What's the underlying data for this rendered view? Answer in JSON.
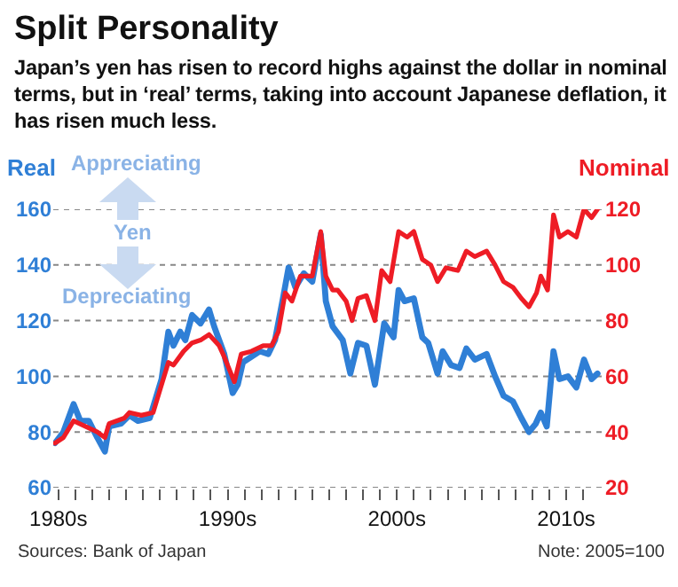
{
  "chart_data": {
    "type": "line",
    "title": "Split Personality",
    "subtitle": "Japan’s yen has risen to record highs against the dollar in nominal terms, but in ‘real’ terms, taking into account Japanese deflation, it has risen much less.",
    "annotations": [
      "Appreciating",
      "Yen",
      "Depreciating",
      "Sources: Bank of Japan",
      "Note: 2005=100"
    ],
    "series": [
      {
        "name": "Real",
        "color": "#2f7fd6",
        "x": [
          1979.8,
          1980.3,
          1980.9,
          1981.3,
          1981.8,
          1982.3,
          1982.75,
          1983.0,
          1983.7,
          1984.2,
          1984.7,
          1985.4,
          1985.7,
          1986.1,
          1986.5,
          1986.8,
          1987.2,
          1987.5,
          1987.9,
          1988.4,
          1988.9,
          1989.2,
          1989.8,
          1990.3,
          1990.6,
          1990.9,
          1991.4,
          1991.9,
          1992.4,
          1992.8,
          1993.3,
          1993.6,
          1994.0,
          1994.5,
          1995.0,
          1995.5,
          1995.8,
          1996.2,
          1996.8,
          1997.25,
          1997.7,
          1998.2,
          1998.7,
          1999.25,
          1999.8,
          2000.1,
          2000.45,
          2001.0,
          2001.5,
          2001.85,
          2002.4,
          2002.7,
          2003.2,
          2003.7,
          2004.1,
          2004.6,
          2005.3,
          2005.8,
          2006.3,
          2006.85,
          2007.35,
          2007.8,
          2008.2,
          2008.5,
          2008.85,
          2009.25,
          2009.6,
          2010.1,
          2010.6,
          2011.05,
          2011.5,
          2011.85
        ],
        "values": [
          76,
          80,
          90,
          84,
          84,
          78,
          73,
          82,
          83,
          86,
          84,
          85,
          91,
          99,
          116,
          111,
          116,
          113,
          122,
          119,
          124,
          118,
          108,
          94,
          97,
          105,
          107,
          109,
          108,
          113,
          129,
          139,
          132,
          137,
          134,
          151,
          127,
          118,
          113,
          101,
          112,
          111,
          97,
          119,
          114,
          131,
          127,
          128,
          114,
          112,
          101,
          109,
          104,
          103,
          110,
          106,
          108,
          100,
          93,
          91,
          85,
          80,
          83,
          87,
          82,
          109,
          99,
          100,
          96,
          106,
          99,
          101
        ]
      },
      {
        "name": "Nominal",
        "color": "#ee1c25",
        "axis": "y2",
        "x": [
          1979.8,
          1980.3,
          1980.9,
          1981.6,
          1982.3,
          1982.75,
          1983.0,
          1983.9,
          1984.2,
          1984.9,
          1985.6,
          1986.0,
          1986.5,
          1986.8,
          1987.4,
          1987.9,
          1988.4,
          1988.9,
          1989.5,
          1989.8,
          1990.4,
          1990.8,
          1991.4,
          1992.1,
          1992.6,
          1993.0,
          1993.4,
          1993.8,
          1994.3,
          1995.0,
          1995.5,
          1995.8,
          1996.2,
          1996.5,
          1997.0,
          1997.35,
          1997.7,
          1998.2,
          1998.7,
          1999.1,
          1999.6,
          2000.1,
          2000.6,
          2001.0,
          2001.5,
          2002.0,
          2002.4,
          2002.9,
          2003.6,
          2004.1,
          2004.6,
          2005.3,
          2005.8,
          2006.3,
          2006.85,
          2007.35,
          2007.8,
          2008.25,
          2008.5,
          2008.9,
          2009.25,
          2009.6,
          2010.1,
          2010.6,
          2011.05,
          2011.5,
          2011.85
        ],
        "values": [
          36,
          38,
          44,
          42,
          40,
          38,
          43,
          45,
          47,
          46,
          47,
          55,
          65,
          64,
          69,
          72,
          73,
          75,
          71,
          67,
          58,
          68,
          69,
          71,
          71,
          76,
          90,
          87,
          96,
          96,
          112,
          96,
          91,
          91,
          87,
          80,
          88,
          89,
          80,
          98,
          94,
          112,
          110,
          112,
          102,
          100,
          94,
          99,
          98,
          105,
          103,
          105,
          100,
          94,
          92,
          88,
          85,
          90,
          96,
          91,
          118,
          110,
          112,
          110,
          120,
          117,
          120
        ]
      }
    ],
    "xlim": [
      1979.7,
      2012.2
    ],
    "xticks": [
      {
        "value": 1980,
        "label": "1980s"
      },
      {
        "value": 1981,
        "label": null
      },
      {
        "value": 1982,
        "label": null
      },
      {
        "value": 1983,
        "label": null
      },
      {
        "value": 1984,
        "label": null
      },
      {
        "value": 1985,
        "label": null
      },
      {
        "value": 1986,
        "label": null
      },
      {
        "value": 1987,
        "label": null
      },
      {
        "value": 1988,
        "label": null
      },
      {
        "value": 1989,
        "label": null
      },
      {
        "value": 1990,
        "label": "1990s"
      },
      {
        "value": 1991,
        "label": null
      },
      {
        "value": 1992,
        "label": null
      },
      {
        "value": 1993,
        "label": null
      },
      {
        "value": 1994,
        "label": null
      },
      {
        "value": 1995,
        "label": null
      },
      {
        "value": 1996,
        "label": null
      },
      {
        "value": 1997,
        "label": null
      },
      {
        "value": 1998,
        "label": null
      },
      {
        "value": 1999,
        "label": null
      },
      {
        "value": 2000,
        "label": "2000s"
      },
      {
        "value": 2001,
        "label": null
      },
      {
        "value": 2002,
        "label": null
      },
      {
        "value": 2003,
        "label": null
      },
      {
        "value": 2004,
        "label": null
      },
      {
        "value": 2005,
        "label": null
      },
      {
        "value": 2006,
        "label": null
      },
      {
        "value": 2007,
        "label": null
      },
      {
        "value": 2008,
        "label": null
      },
      {
        "value": 2009,
        "label": null
      },
      {
        "value": 2010,
        "label": "2010s"
      },
      {
        "value": 2011,
        "label": null
      }
    ],
    "ylim": [
      60,
      160
    ],
    "yticks": [
      60,
      80,
      100,
      120,
      140,
      160
    ],
    "y2lim": [
      20,
      120
    ],
    "y2ticks": [
      20,
      40,
      60,
      80,
      100,
      120
    ],
    "grid": "y",
    "legend": false,
    "marker": "none",
    "line_style": "solid"
  }
}
